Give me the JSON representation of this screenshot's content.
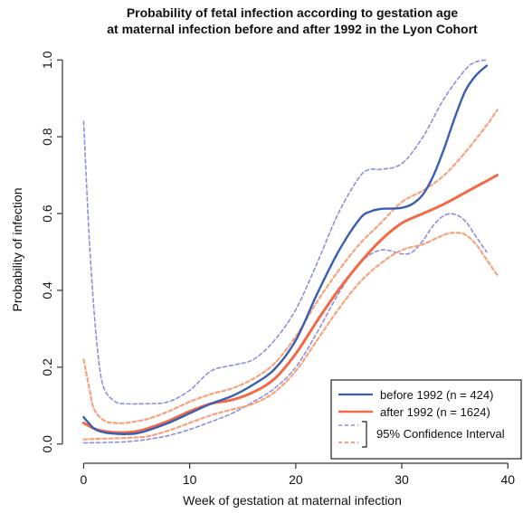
{
  "chart_data": {
    "type": "line",
    "title": "Probability of fetal infection  according to gestation age",
    "subtitle": "at maternal infection before and after 1992 in the Lyon Cohort",
    "xlabel": "Week of gestation at maternal infection",
    "ylabel": "Probability of infection",
    "xlim": [
      -2,
      41
    ],
    "ylim": [
      -0.05,
      1.05
    ],
    "xticks": [
      "0",
      "10",
      "20",
      "30",
      "40"
    ],
    "yticks": [
      "0.0",
      "0.2",
      "0.4",
      "0.6",
      "0.8",
      "1.0"
    ],
    "grid": false,
    "legend_position": "bottom-right",
    "legend": {
      "before": "before 1992 (n = 424)",
      "after": "after 1992 (n = 1624)",
      "ci": "95% Confidence Interval"
    },
    "colors": {
      "before": "#3a5fb0",
      "after": "#f26a45",
      "before_ci": "#8c8fe0",
      "after_ci": "#f8a27c",
      "axis": "#333333"
    },
    "series": [
      {
        "name": "before 1992 (n = 424)",
        "key": "before",
        "style": "solid",
        "x": [
          0,
          1,
          2,
          3,
          4,
          5,
          6,
          8,
          10,
          12,
          14,
          16,
          18,
          20,
          22,
          24,
          26,
          27,
          28,
          29,
          30,
          31,
          32,
          33,
          34,
          35,
          36,
          37,
          38
        ],
        "y": [
          0.07,
          0.04,
          0.03,
          0.027,
          0.026,
          0.028,
          0.035,
          0.055,
          0.08,
          0.105,
          0.125,
          0.155,
          0.195,
          0.27,
          0.39,
          0.5,
          0.585,
          0.605,
          0.612,
          0.613,
          0.615,
          0.625,
          0.65,
          0.7,
          0.77,
          0.85,
          0.92,
          0.96,
          0.985
        ]
      },
      {
        "name": "after 1992 (n = 1624)",
        "key": "after",
        "style": "solid",
        "x": [
          0,
          1,
          2,
          3,
          4,
          5,
          6,
          8,
          10,
          12,
          14,
          16,
          18,
          20,
          22,
          24,
          26,
          28,
          30,
          32,
          34,
          36,
          38,
          39
        ],
        "y": [
          0.055,
          0.04,
          0.033,
          0.03,
          0.03,
          0.033,
          0.04,
          0.06,
          0.085,
          0.105,
          0.115,
          0.135,
          0.17,
          0.235,
          0.32,
          0.4,
          0.47,
          0.53,
          0.575,
          0.6,
          0.625,
          0.655,
          0.685,
          0.7
        ]
      },
      {
        "name": "",
        "key": "before_ci_upper",
        "style": "dashed",
        "x": [
          0,
          0.5,
          1,
          1.5,
          2,
          3,
          4,
          6,
          8,
          10,
          12,
          14,
          16,
          18,
          20,
          22,
          24,
          26,
          27,
          28,
          30,
          32,
          34,
          36,
          37,
          38
        ],
        "y": [
          0.84,
          0.55,
          0.34,
          0.2,
          0.14,
          0.11,
          0.105,
          0.105,
          0.11,
          0.14,
          0.19,
          0.205,
          0.22,
          0.27,
          0.35,
          0.47,
          0.6,
          0.695,
          0.715,
          0.715,
          0.73,
          0.8,
          0.9,
          0.975,
          0.995,
          1.0
        ]
      },
      {
        "name": "",
        "key": "before_ci_lower",
        "style": "dashed",
        "x": [
          0,
          2,
          4,
          6,
          8,
          10,
          12,
          14,
          16,
          18,
          20,
          22,
          24,
          26,
          28,
          30,
          31,
          32,
          33,
          34,
          35,
          36,
          37,
          38
        ],
        "y": [
          0.003,
          0.004,
          0.006,
          0.012,
          0.022,
          0.038,
          0.058,
          0.08,
          0.11,
          0.145,
          0.2,
          0.29,
          0.39,
          0.47,
          0.505,
          0.495,
          0.5,
          0.53,
          0.57,
          0.595,
          0.598,
          0.58,
          0.54,
          0.5
        ]
      },
      {
        "name": "",
        "key": "after_ci_upper",
        "style": "dashed",
        "x": [
          0,
          0.5,
          1,
          2,
          3,
          4,
          6,
          8,
          10,
          12,
          14,
          16,
          18,
          20,
          22,
          24,
          26,
          28,
          30,
          32,
          34,
          36,
          38,
          39
        ],
        "y": [
          0.22,
          0.15,
          0.09,
          0.06,
          0.055,
          0.055,
          0.065,
          0.085,
          0.11,
          0.13,
          0.145,
          0.17,
          0.21,
          0.28,
          0.37,
          0.45,
          0.52,
          0.575,
          0.63,
          0.66,
          0.7,
          0.76,
          0.83,
          0.87
        ]
      },
      {
        "name": "",
        "key": "after_ci_lower",
        "style": "dashed",
        "x": [
          0,
          2,
          4,
          6,
          8,
          10,
          12,
          14,
          16,
          18,
          20,
          22,
          24,
          26,
          28,
          30,
          32,
          34,
          35,
          36,
          37,
          38,
          39
        ],
        "y": [
          0.012,
          0.014,
          0.016,
          0.02,
          0.035,
          0.055,
          0.075,
          0.09,
          0.105,
          0.135,
          0.19,
          0.27,
          0.35,
          0.42,
          0.47,
          0.505,
          0.52,
          0.545,
          0.55,
          0.545,
          0.52,
          0.48,
          0.44
        ]
      }
    ]
  }
}
